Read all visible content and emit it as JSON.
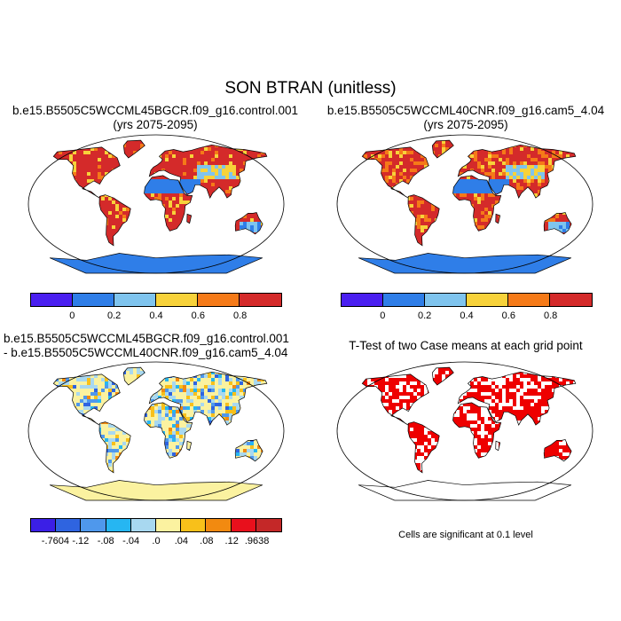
{
  "figure": {
    "title": "SON BTRAN (unitless)",
    "panels": [
      {
        "title_line1": "b.e15.B5505C5WCCML45BGCR.f09_g16.control.001",
        "title_line2": "(yrs 2075-2095)",
        "colorbar": {
          "colors": [
            "#4a1ff0",
            "#2f7ee8",
            "#7fc4ee",
            "#f7d23a",
            "#f57a18",
            "#d42a2a"
          ],
          "tick_labels": [
            "0",
            "0.2",
            "0.4",
            "0.6",
            "0.8"
          ]
        }
      },
      {
        "title_line1": "b.e15.B5505C5WCCML40CNR.f09_g16.cam5_4.04",
        "title_line2": "(yrs 2075-2095)",
        "colorbar": {
          "colors": [
            "#4a1ff0",
            "#2f7ee8",
            "#7fc4ee",
            "#f7d23a",
            "#f57a18",
            "#d42a2a"
          ],
          "tick_labels": [
            "0",
            "0.2",
            "0.4",
            "0.6",
            "0.8"
          ]
        }
      },
      {
        "title_line1": "b.e15.B5505C5WCCML45BGCR.f09_g16.control.001",
        "title_line2": "- b.e15.B5505C5WCCML40CNR.f09_g16.cam5_4.04",
        "colorbar": {
          "colors": [
            "#3b1fe6",
            "#2f64e0",
            "#4f98ec",
            "#26b6f2",
            "#a8d8f0",
            "#fbf2a0",
            "#f8c01a",
            "#f28a10",
            "#e8101c",
            "#c42828"
          ],
          "tick_labels": [
            "-.7604",
            "-.12",
            "-.08",
            "-.04",
            ".0",
            ".04",
            ".08",
            ".12",
            ".9638"
          ]
        }
      },
      {
        "title_line1": "T-Test of two Case means at each grid point",
        "footnote": "Cells are significant at 0.1 level",
        "significance_color": "#ee0000"
      }
    ]
  },
  "chart_data": {
    "type": "heatmap",
    "title": "SON BTRAN (unitless)",
    "projection": "Robinson",
    "panels": 4,
    "field": "BTRAN",
    "season": "SON",
    "years": "2075-2095",
    "value_range_panels_1_2": [
      0,
      1
    ],
    "difference_range_panel_3": [
      -0.7604,
      0.9638
    ]
  }
}
